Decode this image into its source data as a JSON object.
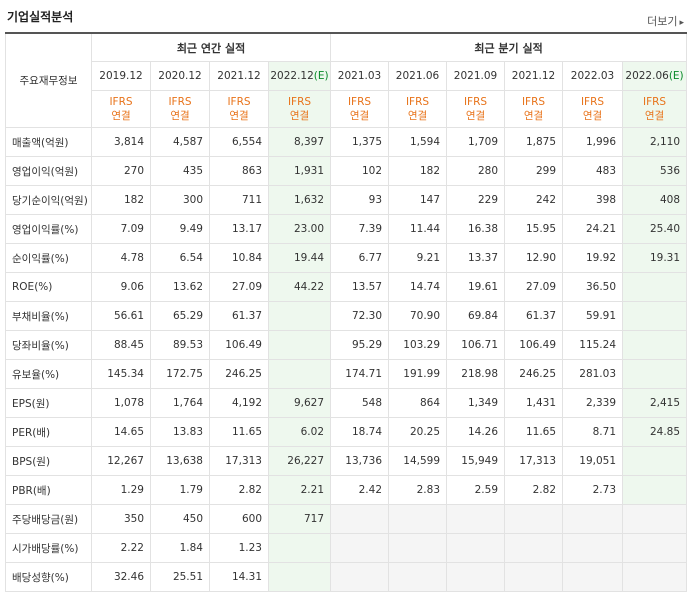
{
  "header": {
    "title": "기업실적분석",
    "more_label": "더보기",
    "more_arrow": "▸"
  },
  "table": {
    "row_header_label": "주요재무정보",
    "group_annual": "최근 연간 실적",
    "group_quarter": "최근 분기 실적",
    "periods": [
      {
        "label": "2019.12",
        "est": ""
      },
      {
        "label": "2020.12",
        "est": ""
      },
      {
        "label": "2021.12",
        "est": ""
      },
      {
        "label": "2022.12",
        "est": "(E)"
      },
      {
        "label": "2021.03",
        "est": ""
      },
      {
        "label": "2021.06",
        "est": ""
      },
      {
        "label": "2021.09",
        "est": ""
      },
      {
        "label": "2021.12",
        "est": ""
      },
      {
        "label": "2022.03",
        "est": ""
      },
      {
        "label": "2022.06",
        "est": "(E)"
      }
    ],
    "ifrs_line1": "IFRS",
    "ifrs_line2": "연결",
    "rows": [
      {
        "label": "매출액(억원)",
        "values": [
          "3,814",
          "4,587",
          "6,554",
          "8,397",
          "1,375",
          "1,594",
          "1,709",
          "1,875",
          "1,996",
          "2,110"
        ]
      },
      {
        "label": "영업이익(억원)",
        "values": [
          "270",
          "435",
          "863",
          "1,931",
          "102",
          "182",
          "280",
          "299",
          "483",
          "536"
        ]
      },
      {
        "label": "당기순이익(억원)",
        "values": [
          "182",
          "300",
          "711",
          "1,632",
          "93",
          "147",
          "229",
          "242",
          "398",
          "408"
        ]
      },
      {
        "label": "영업이익률(%)",
        "values": [
          "7.09",
          "9.49",
          "13.17",
          "23.00",
          "7.39",
          "11.44",
          "16.38",
          "15.95",
          "24.21",
          "25.40"
        ]
      },
      {
        "label": "순이익률(%)",
        "values": [
          "4.78",
          "6.54",
          "10.84",
          "19.44",
          "6.77",
          "9.21",
          "13.37",
          "12.90",
          "19.92",
          "19.31"
        ]
      },
      {
        "label": "ROE(%)",
        "values": [
          "9.06",
          "13.62",
          "27.09",
          "44.22",
          "13.57",
          "14.74",
          "19.61",
          "27.09",
          "36.50",
          ""
        ]
      },
      {
        "label": "부채비율(%)",
        "values": [
          "56.61",
          "65.29",
          "61.37",
          "",
          "72.30",
          "70.90",
          "69.84",
          "61.37",
          "59.91",
          ""
        ]
      },
      {
        "label": "당좌비율(%)",
        "values": [
          "88.45",
          "89.53",
          "106.49",
          "",
          "95.29",
          "103.29",
          "106.71",
          "106.49",
          "115.24",
          ""
        ]
      },
      {
        "label": "유보율(%)",
        "values": [
          "145.34",
          "172.75",
          "246.25",
          "",
          "174.71",
          "191.99",
          "218.98",
          "246.25",
          "281.03",
          ""
        ]
      },
      {
        "label": "EPS(원)",
        "values": [
          "1,078",
          "1,764",
          "4,192",
          "9,627",
          "548",
          "864",
          "1,349",
          "1,431",
          "2,339",
          "2,415"
        ]
      },
      {
        "label": "PER(배)",
        "values": [
          "14.65",
          "13.83",
          "11.65",
          "6.02",
          "18.74",
          "20.25",
          "14.26",
          "11.65",
          "8.71",
          "24.85"
        ]
      },
      {
        "label": "BPS(원)",
        "values": [
          "12,267",
          "13,638",
          "17,313",
          "26,227",
          "13,736",
          "14,599",
          "15,949",
          "17,313",
          "19,051",
          ""
        ]
      },
      {
        "label": "PBR(배)",
        "values": [
          "1.29",
          "1.79",
          "2.82",
          "2.21",
          "2.42",
          "2.83",
          "2.59",
          "2.82",
          "2.73",
          ""
        ]
      },
      {
        "label": "주당배당금(원)",
        "values": [
          "350",
          "450",
          "600",
          "717",
          "",
          "",
          "",
          "",
          "",
          ""
        ]
      },
      {
        "label": "시가배당률(%)",
        "values": [
          "2.22",
          "1.84",
          "1.23",
          "",
          "",
          "",
          "",
          "",
          "",
          ""
        ]
      },
      {
        "label": "배당성향(%)",
        "values": [
          "32.46",
          "25.51",
          "14.31",
          "",
          "",
          "",
          "",
          "",
          "",
          ""
        ]
      }
    ]
  }
}
